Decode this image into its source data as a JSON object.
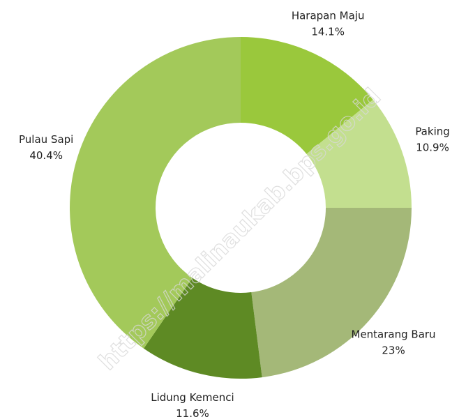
{
  "chart_data": {
    "type": "donut",
    "categories": [
      "Harapan Maju",
      "Paking",
      "Mentarang Baru",
      "Lidung Kemenci",
      "Pulau Sapi"
    ],
    "values": [
      14.1,
      10.9,
      23,
      11.6,
      40.4
    ],
    "value_labels": [
      "14.1%",
      "10.9%",
      "23%",
      "11.6%",
      "40.4%"
    ],
    "colors": [
      "#9ac83c",
      "#c3df8f",
      "#a4b878",
      "#5e8a24",
      "#a3c95a"
    ],
    "watermark": "https://malinaukab.bps.go.id"
  }
}
